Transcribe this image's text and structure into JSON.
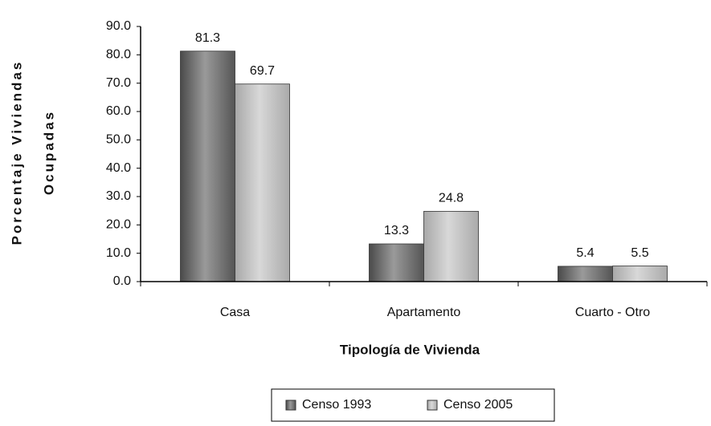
{
  "chart_data": {
    "type": "bar",
    "categories": [
      "Casa",
      "Apartamento",
      "Cuarto - Otro"
    ],
    "series": [
      {
        "name": "Censo 1993",
        "color": "#707070",
        "values": [
          81.3,
          13.3,
          5.4
        ]
      },
      {
        "name": "Censo 2005",
        "color": "#bdbdbd",
        "values": [
          69.7,
          24.8,
          5.5
        ]
      }
    ],
    "xlabel": "Tipología de Vivienda",
    "ylabel": [
      "Porcentaje Viviendas",
      "Ocupadas"
    ],
    "ylim": [
      0,
      90
    ],
    "yticks": [
      {
        "value": 0,
        "label": "0.0"
      },
      {
        "value": 10,
        "label": "10.0"
      },
      {
        "value": 20,
        "label": "20.0"
      },
      {
        "value": 30,
        "label": "30.0"
      },
      {
        "value": 40,
        "label": "40.0"
      },
      {
        "value": 50,
        "label": "50.0"
      },
      {
        "value": 60,
        "label": "60.0"
      },
      {
        "value": 70,
        "label": "70.0"
      },
      {
        "value": 80,
        "label": "80.0"
      },
      {
        "value": 90,
        "label": "90.0"
      }
    ],
    "grid": false,
    "legend": "bottom"
  }
}
